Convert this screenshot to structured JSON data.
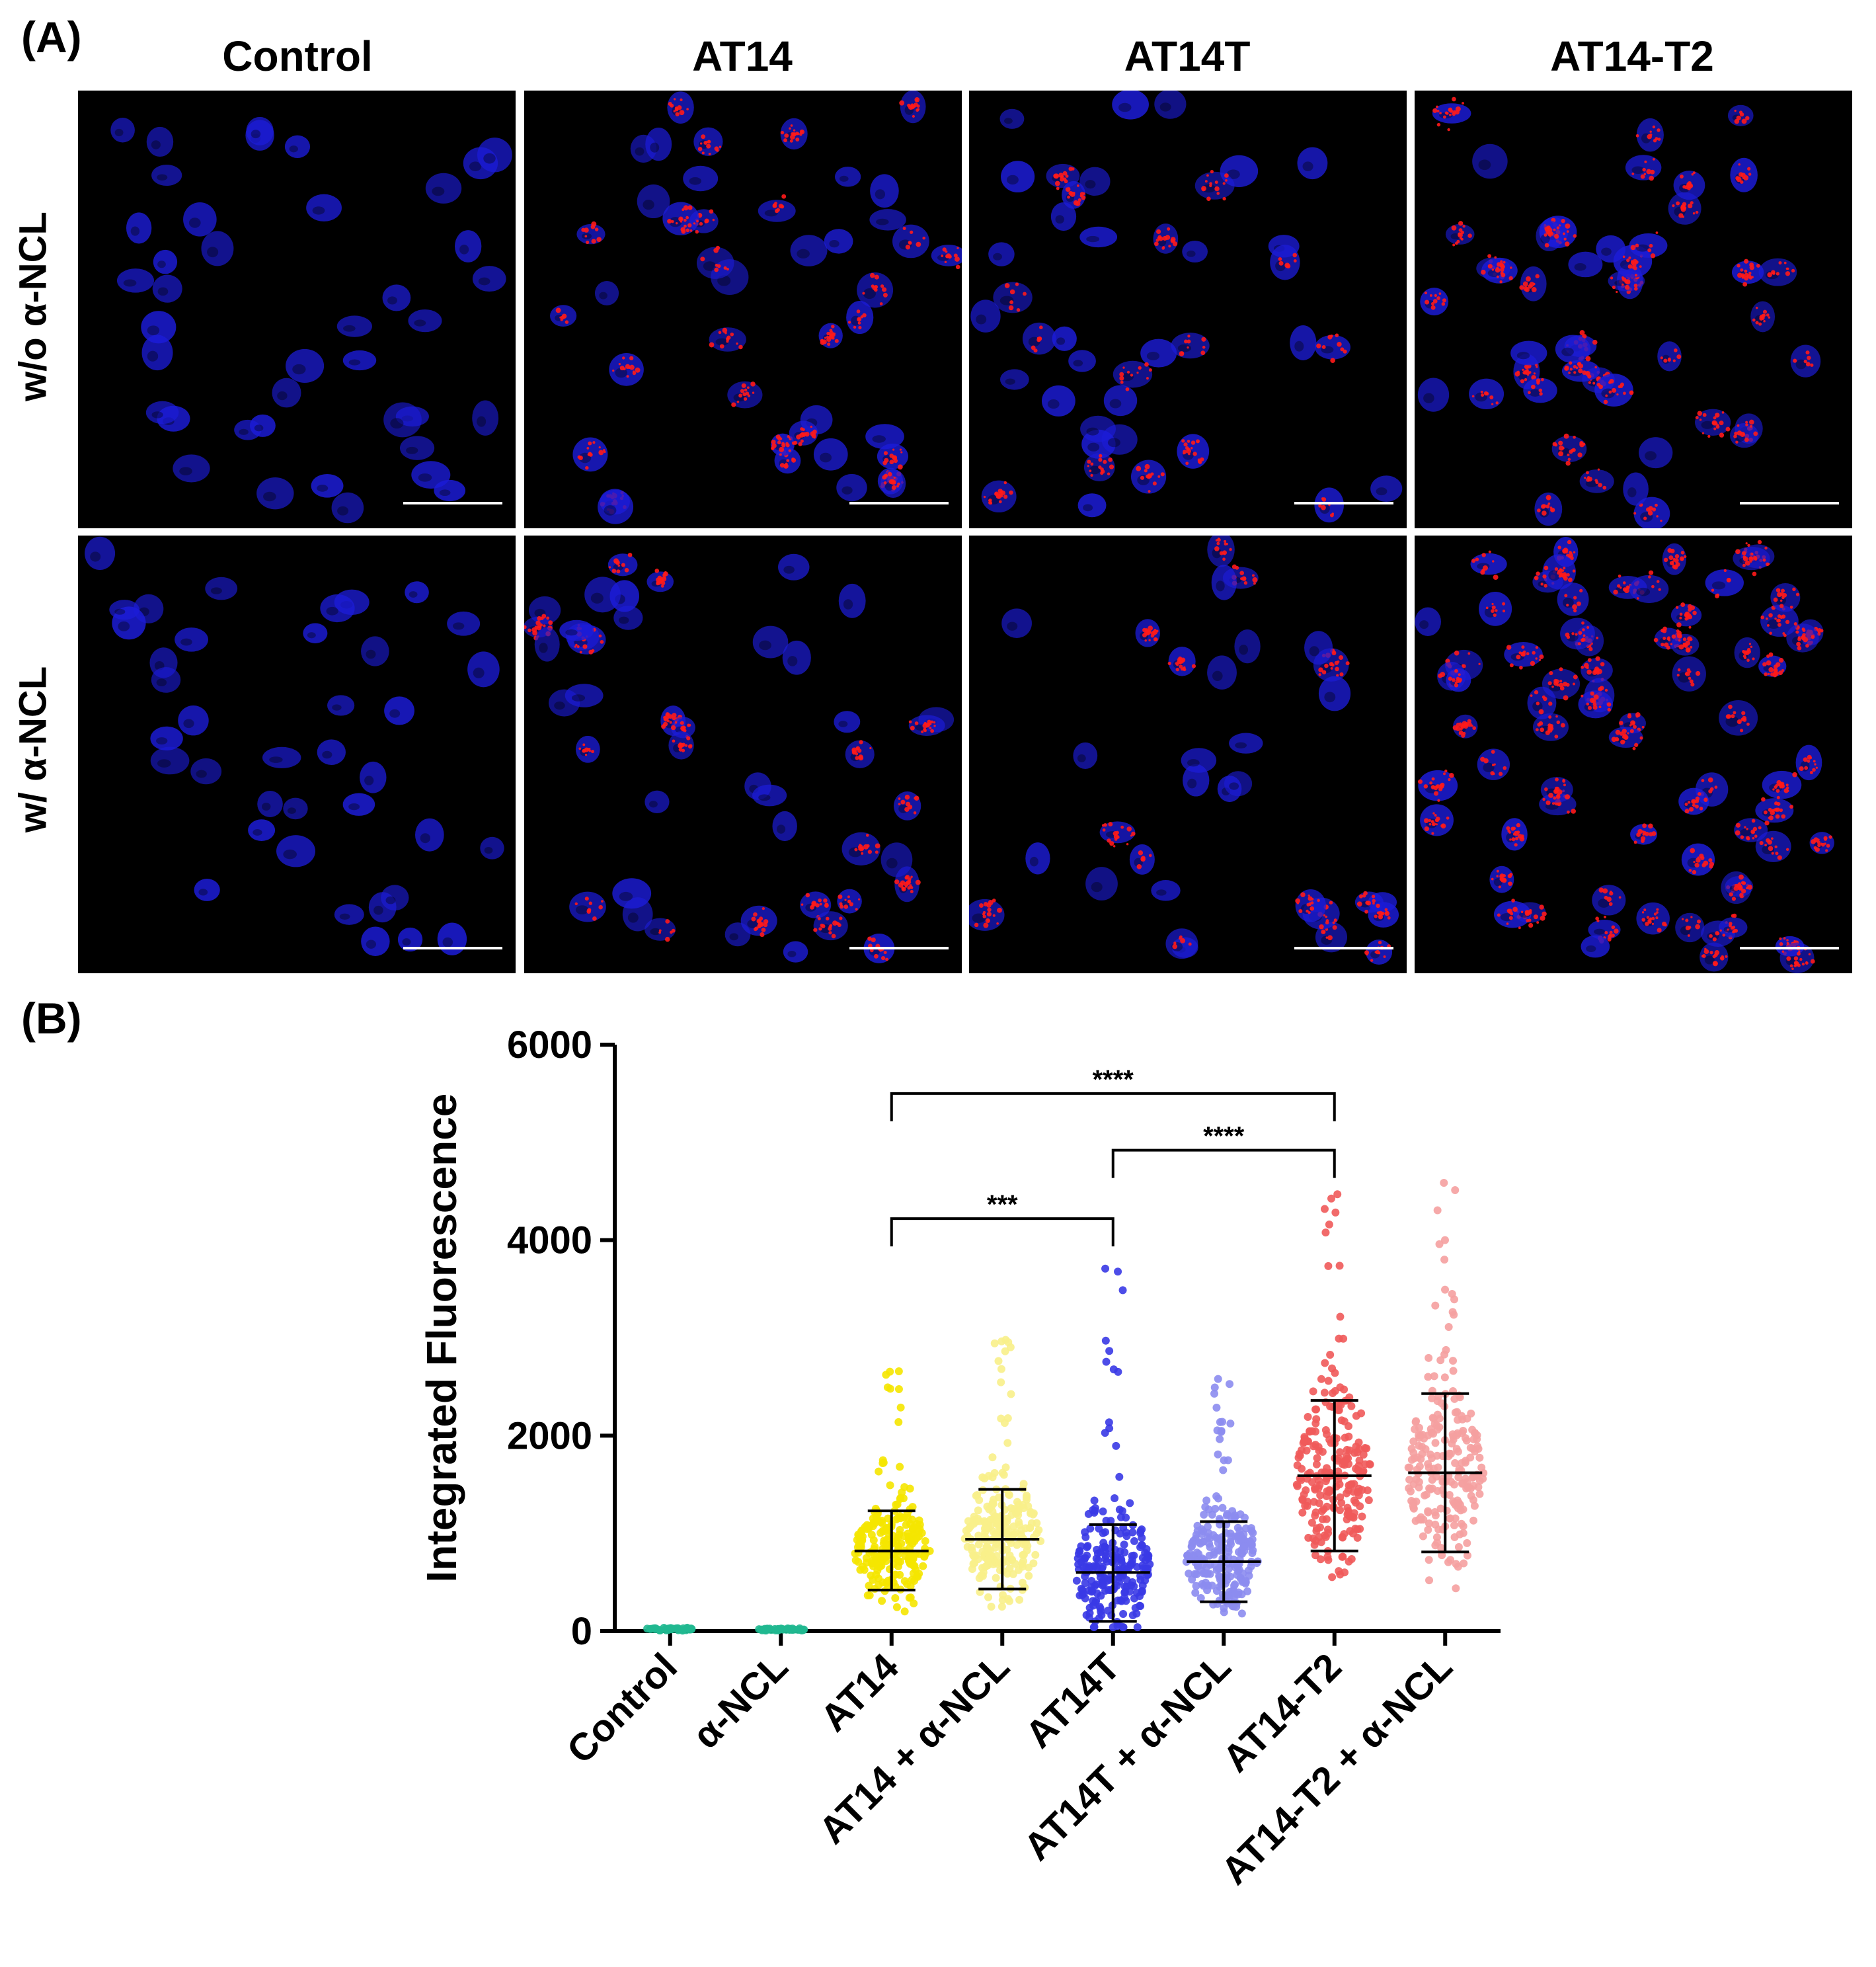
{
  "panel_a": {
    "letter": "(A)",
    "columns": [
      "Control",
      "AT14",
      "AT14T",
      "AT14-T2"
    ],
    "rows": [
      "w/o α-NCL",
      "w/ α-NCL"
    ],
    "colors": {
      "nucleus": "#1c1cd8",
      "signal": "#ff1a1a",
      "background": "#000000",
      "scale_bar": "#ffffff"
    }
  },
  "panel_b": {
    "letter": "(B)"
  },
  "chart_data": {
    "type": "scatter",
    "ylabel": "Integrated Fluorescence",
    "xlabel": "",
    "ylim": [
      0,
      6000
    ],
    "yticks": [
      0,
      2000,
      4000,
      6000
    ],
    "categories": [
      "Control",
      "α-NCL",
      "AT14",
      "AT14 + α-NCL",
      "AT14T",
      "AT14T + α-NCL",
      "AT14-T2",
      "AT14-T2 + α-NCL"
    ],
    "series": [
      {
        "category": "Control",
        "color": "#20b890",
        "mean": 20,
        "sd_low": 5,
        "sd_high": 35,
        "min": 0,
        "max": 40
      },
      {
        "category": "α-NCL",
        "color": "#20b890",
        "mean": 15,
        "sd_low": 5,
        "sd_high": 30,
        "min": 0,
        "max": 35
      },
      {
        "category": "AT14",
        "color": "#f5e600",
        "mean": 820,
        "sd_low": 420,
        "sd_high": 1230,
        "min": 80,
        "max": 2760
      },
      {
        "category": "AT14 + α-NCL",
        "color": "#f8ef8a",
        "mean": 940,
        "sd_low": 430,
        "sd_high": 1450,
        "min": 250,
        "max": 3120
      },
      {
        "category": "AT14T",
        "color": "#3a3ae6",
        "mean": 600,
        "sd_low": 100,
        "sd_high": 1090,
        "min": 40,
        "max": 3750
      },
      {
        "category": "AT14T + α-NCL",
        "color": "#8c8cf0",
        "mean": 710,
        "sd_low": 300,
        "sd_high": 1120,
        "min": 180,
        "max": 2660
      },
      {
        "category": "AT14-T2",
        "color": "#f05a5a",
        "mean": 1590,
        "sd_low": 820,
        "sd_high": 2360,
        "min": 300,
        "max": 4620
      },
      {
        "category": "AT14-T2 + α-NCL",
        "color": "#f5a0a0",
        "mean": 1620,
        "sd_low": 810,
        "sd_high": 2430,
        "min": 360,
        "max": 4880
      }
    ],
    "significance": [
      {
        "from": "AT14",
        "to": "AT14-T2",
        "label": "****",
        "y": 5500
      },
      {
        "from": "AT14T",
        "to": "AT14-T2",
        "label": "****",
        "y": 4920
      },
      {
        "from": "AT14",
        "to": "AT14T",
        "label": "***",
        "y": 4220
      }
    ]
  }
}
